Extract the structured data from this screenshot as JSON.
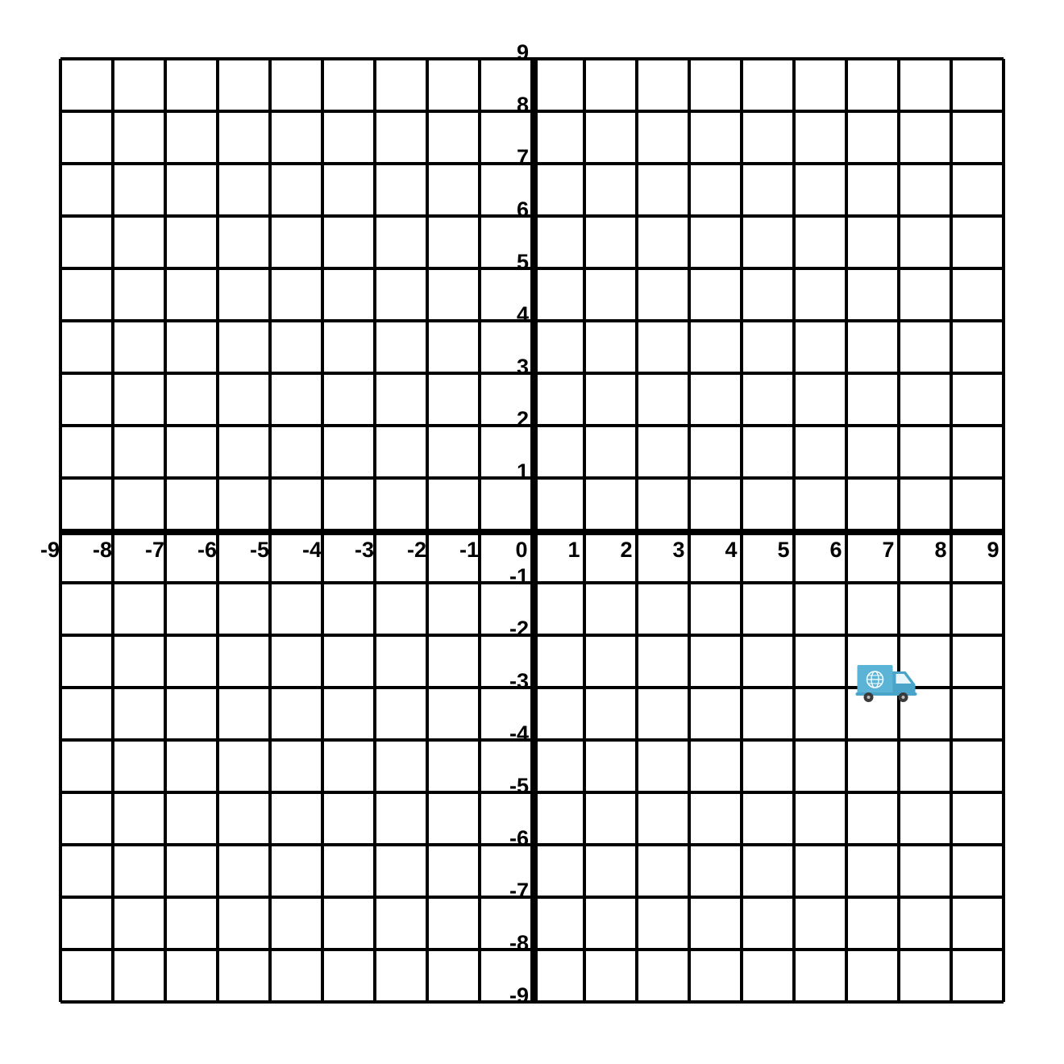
{
  "chart_data": {
    "type": "scatter",
    "title": "",
    "xlabel": "",
    "ylabel": "",
    "xlim": [
      -9,
      9
    ],
    "ylim": [
      -9,
      9
    ],
    "grid": true,
    "x_ticks": [
      "-9",
      "-8",
      "-7",
      "-6",
      "-5",
      "-4",
      "-3",
      "-2",
      "-1",
      "0",
      "1",
      "2",
      "3",
      "4",
      "5",
      "6",
      "7",
      "8",
      "9"
    ],
    "y_ticks": [
      "9",
      "8",
      "7",
      "6",
      "5",
      "4",
      "3",
      "2",
      "1",
      "-1",
      "-2",
      "-3",
      "-4",
      "-5",
      "-6",
      "-7",
      "-8",
      "-9"
    ],
    "points": [
      {
        "x": 7.5,
        "y": -3,
        "icon": "delivery-truck-icon"
      }
    ]
  },
  "colors": {
    "grid": "#000000",
    "truck_body": "#5bb3d5",
    "truck_cab": "#4aa3c8",
    "truck_window": "#e8f6fb",
    "wheel": "#3a3a3a"
  }
}
